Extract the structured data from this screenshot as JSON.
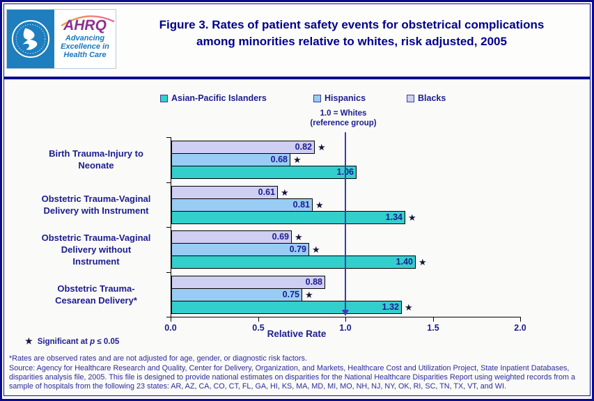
{
  "header": {
    "logo": {
      "agency_acronym": "AHRQ",
      "tagline_lines": [
        "Advancing",
        "Excellence in",
        "Health Care"
      ]
    },
    "title_line1": "Figure 3. Rates of patient safety events for obstetrical complications",
    "title_line2": "among minorities relative to whites, risk adjusted, 2005"
  },
  "legend": [
    {
      "label": "Asian-Pacific Islanders",
      "color": "#33cfcc"
    },
    {
      "label": "Hispanics",
      "color": "#99ccf5"
    },
    {
      "label": "Blacks",
      "color": "#cfcef3"
    }
  ],
  "reference_note": {
    "line1": "1.0 = Whites",
    "line2": "(reference group)"
  },
  "chart_data": {
    "type": "bar",
    "orientation": "horizontal",
    "xlabel": "Relative Rate",
    "xlim": [
      0.0,
      2.0
    ],
    "xticks": [
      0.0,
      0.5,
      1.0,
      1.5,
      2.0
    ],
    "reference_line": {
      "value": 1.0,
      "label": "1.0 = Whites (reference group)"
    },
    "grid": false,
    "legend_position": "top",
    "categories": [
      "Birth Trauma-Injury to Neonate",
      "Obstetric Trauma-Vaginal Delivery with Instrument",
      "Obstetric Trauma-Vaginal Delivery without Instrument",
      "Obstetric Trauma-Cesarean Delivery*"
    ],
    "category_label_lines": [
      [
        "Birth Trauma-Injury to",
        "Neonate"
      ],
      [
        "Obstetric Trauma-Vaginal",
        "Delivery with Instrument"
      ],
      [
        "Obstetric Trauma-Vaginal",
        "Delivery without",
        "Instrument"
      ],
      [
        "Obstetric Trauma-",
        "Cesarean Delivery*"
      ]
    ],
    "series": [
      {
        "name": "Blacks",
        "color": "#cfcef3",
        "values": [
          0.82,
          0.61,
          0.69,
          0.88
        ],
        "significant": [
          true,
          true,
          true,
          false
        ]
      },
      {
        "name": "Hispanics",
        "color": "#99ccf5",
        "values": [
          0.68,
          0.81,
          0.79,
          0.75
        ],
        "significant": [
          true,
          true,
          true,
          true
        ]
      },
      {
        "name": "Asian-Pacific Islanders",
        "color": "#33cfcc",
        "values": [
          1.06,
          1.34,
          1.4,
          1.32
        ],
        "significant": [
          false,
          true,
          true,
          true
        ]
      }
    ],
    "bar_order_top_to_bottom": [
      "Blacks",
      "Hispanics",
      "Asian-Pacific Islanders"
    ],
    "significance_marker": "★"
  },
  "footnotes": {
    "sig_star": "★",
    "sig_before_p": "Significant at",
    "sig_p": "p",
    "sig_after_p": "≤ 0.05",
    "rates_note": "*Rates are observed rates and are not adjusted for age, gender, or diagnostic risk factors.",
    "source": "Source: Agency for Healthcare Research and Quality, Center for Delivery, Organization, and Markets, Healthcare Cost and Utilization Project, State Inpatient Databases, disparities analysis file, 2005. This file is designed to provide national estimates on disparities for the National Healthcare Disparities Report using weighted records from a sample of hospitals from the following 23 states: AR, AZ, CA, CO, CT, FL, GA, HI, KS, MA, MD, MI, MO, NH, NJ, NY, OK, RI, SC, TN, TX, VT, and WI."
  }
}
